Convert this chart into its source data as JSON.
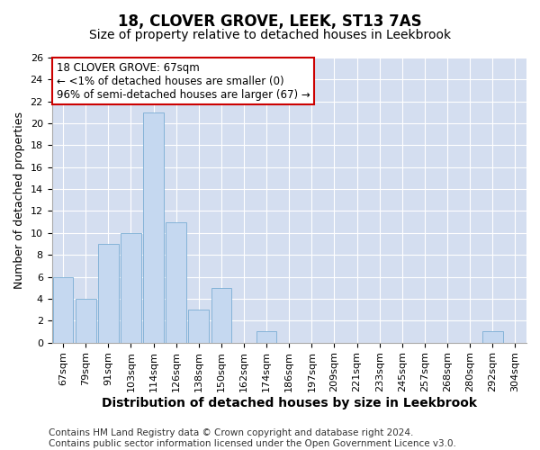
{
  "title": "18, CLOVER GROVE, LEEK, ST13 7AS",
  "subtitle": "Size of property relative to detached houses in Leekbrook",
  "xlabel": "Distribution of detached houses by size in Leekbrook",
  "ylabel": "Number of detached properties",
  "categories": [
    "67sqm",
    "79sqm",
    "91sqm",
    "103sqm",
    "114sqm",
    "126sqm",
    "138sqm",
    "150sqm",
    "162sqm",
    "174sqm",
    "186sqm",
    "197sqm",
    "209sqm",
    "221sqm",
    "233sqm",
    "245sqm",
    "257sqm",
    "268sqm",
    "280sqm",
    "292sqm",
    "304sqm"
  ],
  "values": [
    6,
    4,
    9,
    10,
    21,
    11,
    3,
    5,
    0,
    1,
    0,
    0,
    0,
    0,
    0,
    0,
    0,
    0,
    0,
    1,
    0
  ],
  "bar_color": "#c5d8f0",
  "bar_edge_color": "#7aadd4",
  "background_color": "#ffffff",
  "grid_color": "#d4def0",
  "annotation_box_color": "#ffffff",
  "annotation_box_edge": "#cc0000",
  "annotation_line1": "18 CLOVER GROVE: 67sqm",
  "annotation_line2": "← <1% of detached houses are smaller (0)",
  "annotation_line3": "96% of semi-detached houses are larger (67) →",
  "ylim": [
    0,
    26
  ],
  "yticks": [
    0,
    2,
    4,
    6,
    8,
    10,
    12,
    14,
    16,
    18,
    20,
    22,
    24,
    26
  ],
  "footer1": "Contains HM Land Registry data © Crown copyright and database right 2024.",
  "footer2": "Contains public sector information licensed under the Open Government Licence v3.0.",
  "title_fontsize": 12,
  "subtitle_fontsize": 10,
  "xlabel_fontsize": 10,
  "ylabel_fontsize": 9,
  "tick_fontsize": 8,
  "annotation_fontsize": 8.5,
  "footer_fontsize": 7.5
}
